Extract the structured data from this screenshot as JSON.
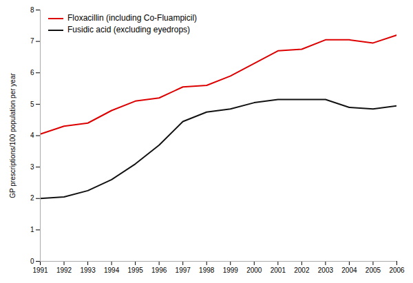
{
  "chart_data": {
    "type": "line",
    "x": [
      1991,
      1992,
      1993,
      1994,
      1995,
      1996,
      1997,
      1998,
      1999,
      2000,
      2001,
      2002,
      2003,
      2004,
      2005,
      2006
    ],
    "series": [
      {
        "name": "Floxacillin (including Co-Fluampicil)",
        "color": "#dd0000",
        "values": [
          4.05,
          4.3,
          4.4,
          4.8,
          5.1,
          5.2,
          5.55,
          5.6,
          5.9,
          6.3,
          6.7,
          6.75,
          7.05,
          7.05,
          6.95,
          7.2
        ]
      },
      {
        "name": "Fusidic acid (excluding eyedrops)",
        "color": "#111111",
        "values": [
          2.0,
          2.05,
          2.25,
          2.6,
          3.1,
          3.7,
          4.45,
          4.75,
          4.85,
          5.05,
          5.15,
          5.15,
          5.15,
          4.9,
          4.85,
          4.95
        ]
      }
    ],
    "ylabel": "GP prescriptions/100 population per year",
    "xlim": [
      1991,
      2006
    ],
    "xticks": [
      1991,
      1992,
      1993,
      1994,
      1995,
      1996,
      1997,
      1998,
      1999,
      2000,
      2001,
      2002,
      2003,
      2004,
      2005,
      2006
    ],
    "ylim": [
      0,
      8
    ],
    "yticks": [
      0,
      1,
      2,
      3,
      4,
      5,
      6,
      7,
      8
    ],
    "grid": false,
    "legend": "upper left"
  }
}
